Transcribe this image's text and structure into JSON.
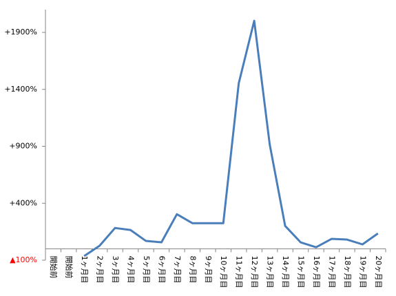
{
  "chart_data": {
    "type": "line",
    "categories": [
      "開始前",
      "開始前",
      "1ヶ月目",
      "2ヶ月目",
      "3ヶ月目",
      "4ヶ月目",
      "5ヶ月目",
      "6ヶ月目",
      "7ヶ月目",
      "8ヶ月目",
      "9ヶ月目",
      "10ヶ月目",
      "11ヶ月目",
      "12ヶ月目",
      "13ヶ月目",
      "14ヶ月目",
      "15ヶ月目",
      "16ヶ月目",
      "17ヶ月目",
      "18ヶ月目",
      "19ヶ月目",
      "20ヶ月目"
    ],
    "values": [
      null,
      null,
      -64,
      27,
      183,
      165,
      69,
      57,
      304,
      225,
      225,
      225,
      1454,
      2002,
      918,
      201,
      57,
      14,
      87,
      81,
      39,
      135
    ],
    "color": "#4a7ebb",
    "ylim": [
      -100,
      2100
    ],
    "yticks": [
      {
        "value": -100,
        "label": "▲100%"
      },
      {
        "value": 400,
        "label": "+400%"
      },
      {
        "value": 900,
        "label": "+900%"
      },
      {
        "value": 1400,
        "label": "+1400%"
      },
      {
        "value": 1900,
        "label": "+1900%"
      }
    ]
  }
}
